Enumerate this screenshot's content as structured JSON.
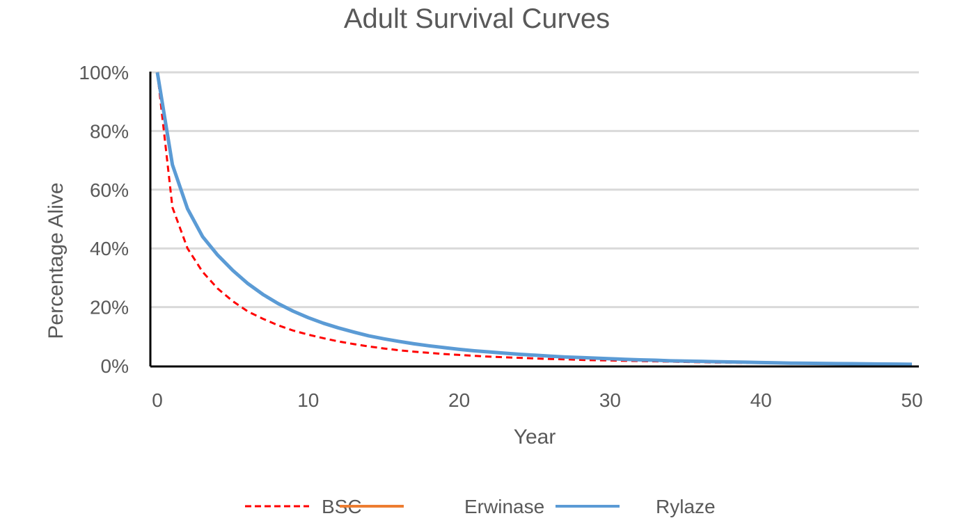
{
  "chart_data": {
    "type": "line",
    "title": "Adult Survival Curves",
    "xlabel": "Year",
    "ylabel": "Percentage Alive",
    "xlim": [
      0,
      50
    ],
    "ylim": [
      0,
      100
    ],
    "x_ticks": [
      "0",
      "10",
      "20",
      "30",
      "40",
      "50"
    ],
    "y_ticks": [
      "0%",
      "20%",
      "40%",
      "60%",
      "80%",
      "100%"
    ],
    "grid": "horizontal",
    "legend": "bottom",
    "x": [
      0,
      1,
      2,
      3,
      4,
      5,
      6,
      7,
      8,
      9,
      10,
      11,
      12,
      13,
      14,
      15,
      16,
      17,
      18,
      19,
      20,
      21,
      22,
      23,
      24,
      25,
      26,
      27,
      28,
      29,
      30,
      31,
      32,
      33,
      34,
      35,
      36,
      37,
      38,
      39,
      40,
      41,
      42,
      43,
      44,
      45,
      46,
      47,
      48,
      49,
      50
    ],
    "series": [
      {
        "name": "BSC",
        "color": "#FF0000",
        "style": "dashed",
        "values": [
          100,
          54,
          40,
          32,
          26.3,
          22,
          18.5,
          16,
          13.8,
          12,
          10.6,
          9.4,
          8.3,
          7.4,
          6.6,
          5.9,
          5.3,
          4.8,
          4.4,
          4.0,
          3.7,
          3.4,
          3.1,
          2.9,
          2.7,
          2.5,
          2.3,
          2.2,
          2.0,
          1.9,
          1.8,
          1.7,
          1.6,
          1.5,
          1.4,
          1.3,
          1.2,
          1.1,
          1.05,
          1.0,
          0.95,
          0.9,
          0.85,
          0.8,
          0.75,
          0.7,
          0.65,
          0.6,
          0.55,
          0.5,
          0.45
        ]
      },
      {
        "name": "Erwinase",
        "color": "#ED7D31",
        "style": "solid",
        "values": [
          100,
          68.5,
          53.5,
          44,
          37.7,
          32.5,
          28,
          24.3,
          21.2,
          18.6,
          16.4,
          14.5,
          12.9,
          11.5,
          10.2,
          9.2,
          8.3,
          7.5,
          6.8,
          6.2,
          5.6,
          5.1,
          4.7,
          4.3,
          3.9,
          3.6,
          3.3,
          3.0,
          2.8,
          2.6,
          2.4,
          2.2,
          2.0,
          1.9,
          1.7,
          1.6,
          1.5,
          1.4,
          1.3,
          1.2,
          1.1,
          1.0,
          0.9,
          0.85,
          0.8,
          0.75,
          0.7,
          0.65,
          0.6,
          0.55,
          0.5
        ]
      },
      {
        "name": "Rylaze",
        "color": "#5B9BD5",
        "style": "solid",
        "values": [
          100,
          68.5,
          53.5,
          44,
          37.7,
          32.5,
          28,
          24.3,
          21.2,
          18.6,
          16.4,
          14.5,
          12.9,
          11.5,
          10.2,
          9.2,
          8.3,
          7.5,
          6.8,
          6.2,
          5.6,
          5.1,
          4.7,
          4.3,
          3.9,
          3.6,
          3.3,
          3.0,
          2.8,
          2.6,
          2.4,
          2.2,
          2.0,
          1.9,
          1.7,
          1.6,
          1.5,
          1.4,
          1.3,
          1.2,
          1.1,
          1.0,
          0.9,
          0.85,
          0.8,
          0.75,
          0.7,
          0.65,
          0.6,
          0.55,
          0.5
        ]
      }
    ]
  }
}
